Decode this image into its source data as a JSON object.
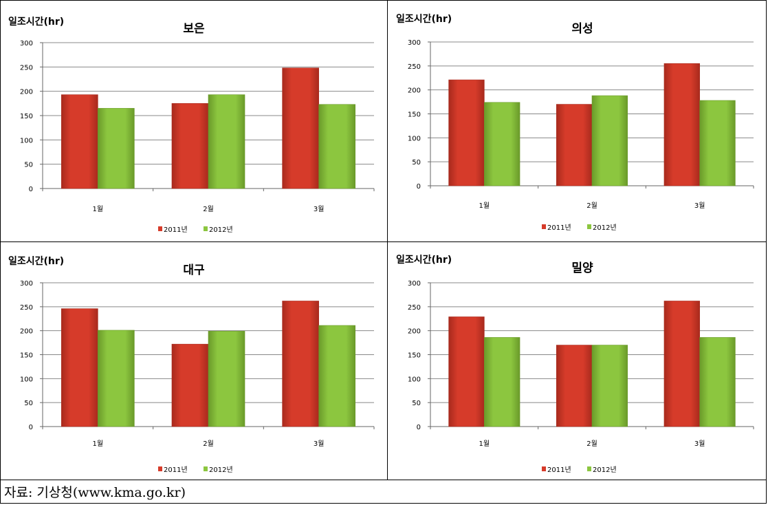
{
  "chart_data": [
    {
      "type": "bar",
      "title": "보은",
      "ylabel": "일조시간(hr)",
      "categories": [
        "1월",
        "2월",
        "3월"
      ],
      "series": [
        {
          "name": "2011년",
          "values": [
            193,
            175,
            248
          ]
        },
        {
          "name": "2012년",
          "values": [
            165,
            193,
            173
          ]
        }
      ],
      "ylim": [
        0,
        300
      ],
      "yticks": [
        0,
        50,
        100,
        150,
        200,
        250,
        300
      ],
      "grid": true,
      "legend": "bottom"
    },
    {
      "type": "bar",
      "title": "의성",
      "ylabel": "일조시간(hr)",
      "categories": [
        "1월",
        "2월",
        "3월"
      ],
      "series": [
        {
          "name": "2011년",
          "values": [
            221,
            170,
            255
          ]
        },
        {
          "name": "2012년",
          "values": [
            174,
            188,
            178
          ]
        }
      ],
      "ylim": [
        0,
        300
      ],
      "yticks": [
        0,
        50,
        100,
        150,
        200,
        250,
        300
      ],
      "grid": true,
      "legend": "bottom"
    },
    {
      "type": "bar",
      "title": "대구",
      "ylabel": "일조시간(hr)",
      "categories": [
        "1월",
        "2월",
        "3월"
      ],
      "series": [
        {
          "name": "2011년",
          "values": [
            246,
            172,
            262
          ]
        },
        {
          "name": "2012년",
          "values": [
            201,
            199,
            211
          ]
        }
      ],
      "ylim": [
        0,
        300
      ],
      "yticks": [
        0,
        50,
        100,
        150,
        200,
        250,
        300
      ],
      "grid": true,
      "legend": "bottom"
    },
    {
      "type": "bar",
      "title": "밀양",
      "ylabel": "일조시간(hr)",
      "categories": [
        "1월",
        "2월",
        "3월"
      ],
      "series": [
        {
          "name": "2011년",
          "values": [
            229,
            170,
            262
          ]
        },
        {
          "name": "2012년",
          "values": [
            186,
            170,
            186
          ]
        }
      ],
      "ylim": [
        0,
        300
      ],
      "yticks": [
        0,
        50,
        100,
        150,
        200,
        250,
        300
      ],
      "grid": true,
      "legend": "bottom"
    }
  ],
  "colors": {
    "series_2011": "#d63b2a",
    "series_2012": "#8cc63f"
  },
  "footer": {
    "source": "자료: 기상청(www.kma.go.kr)"
  }
}
